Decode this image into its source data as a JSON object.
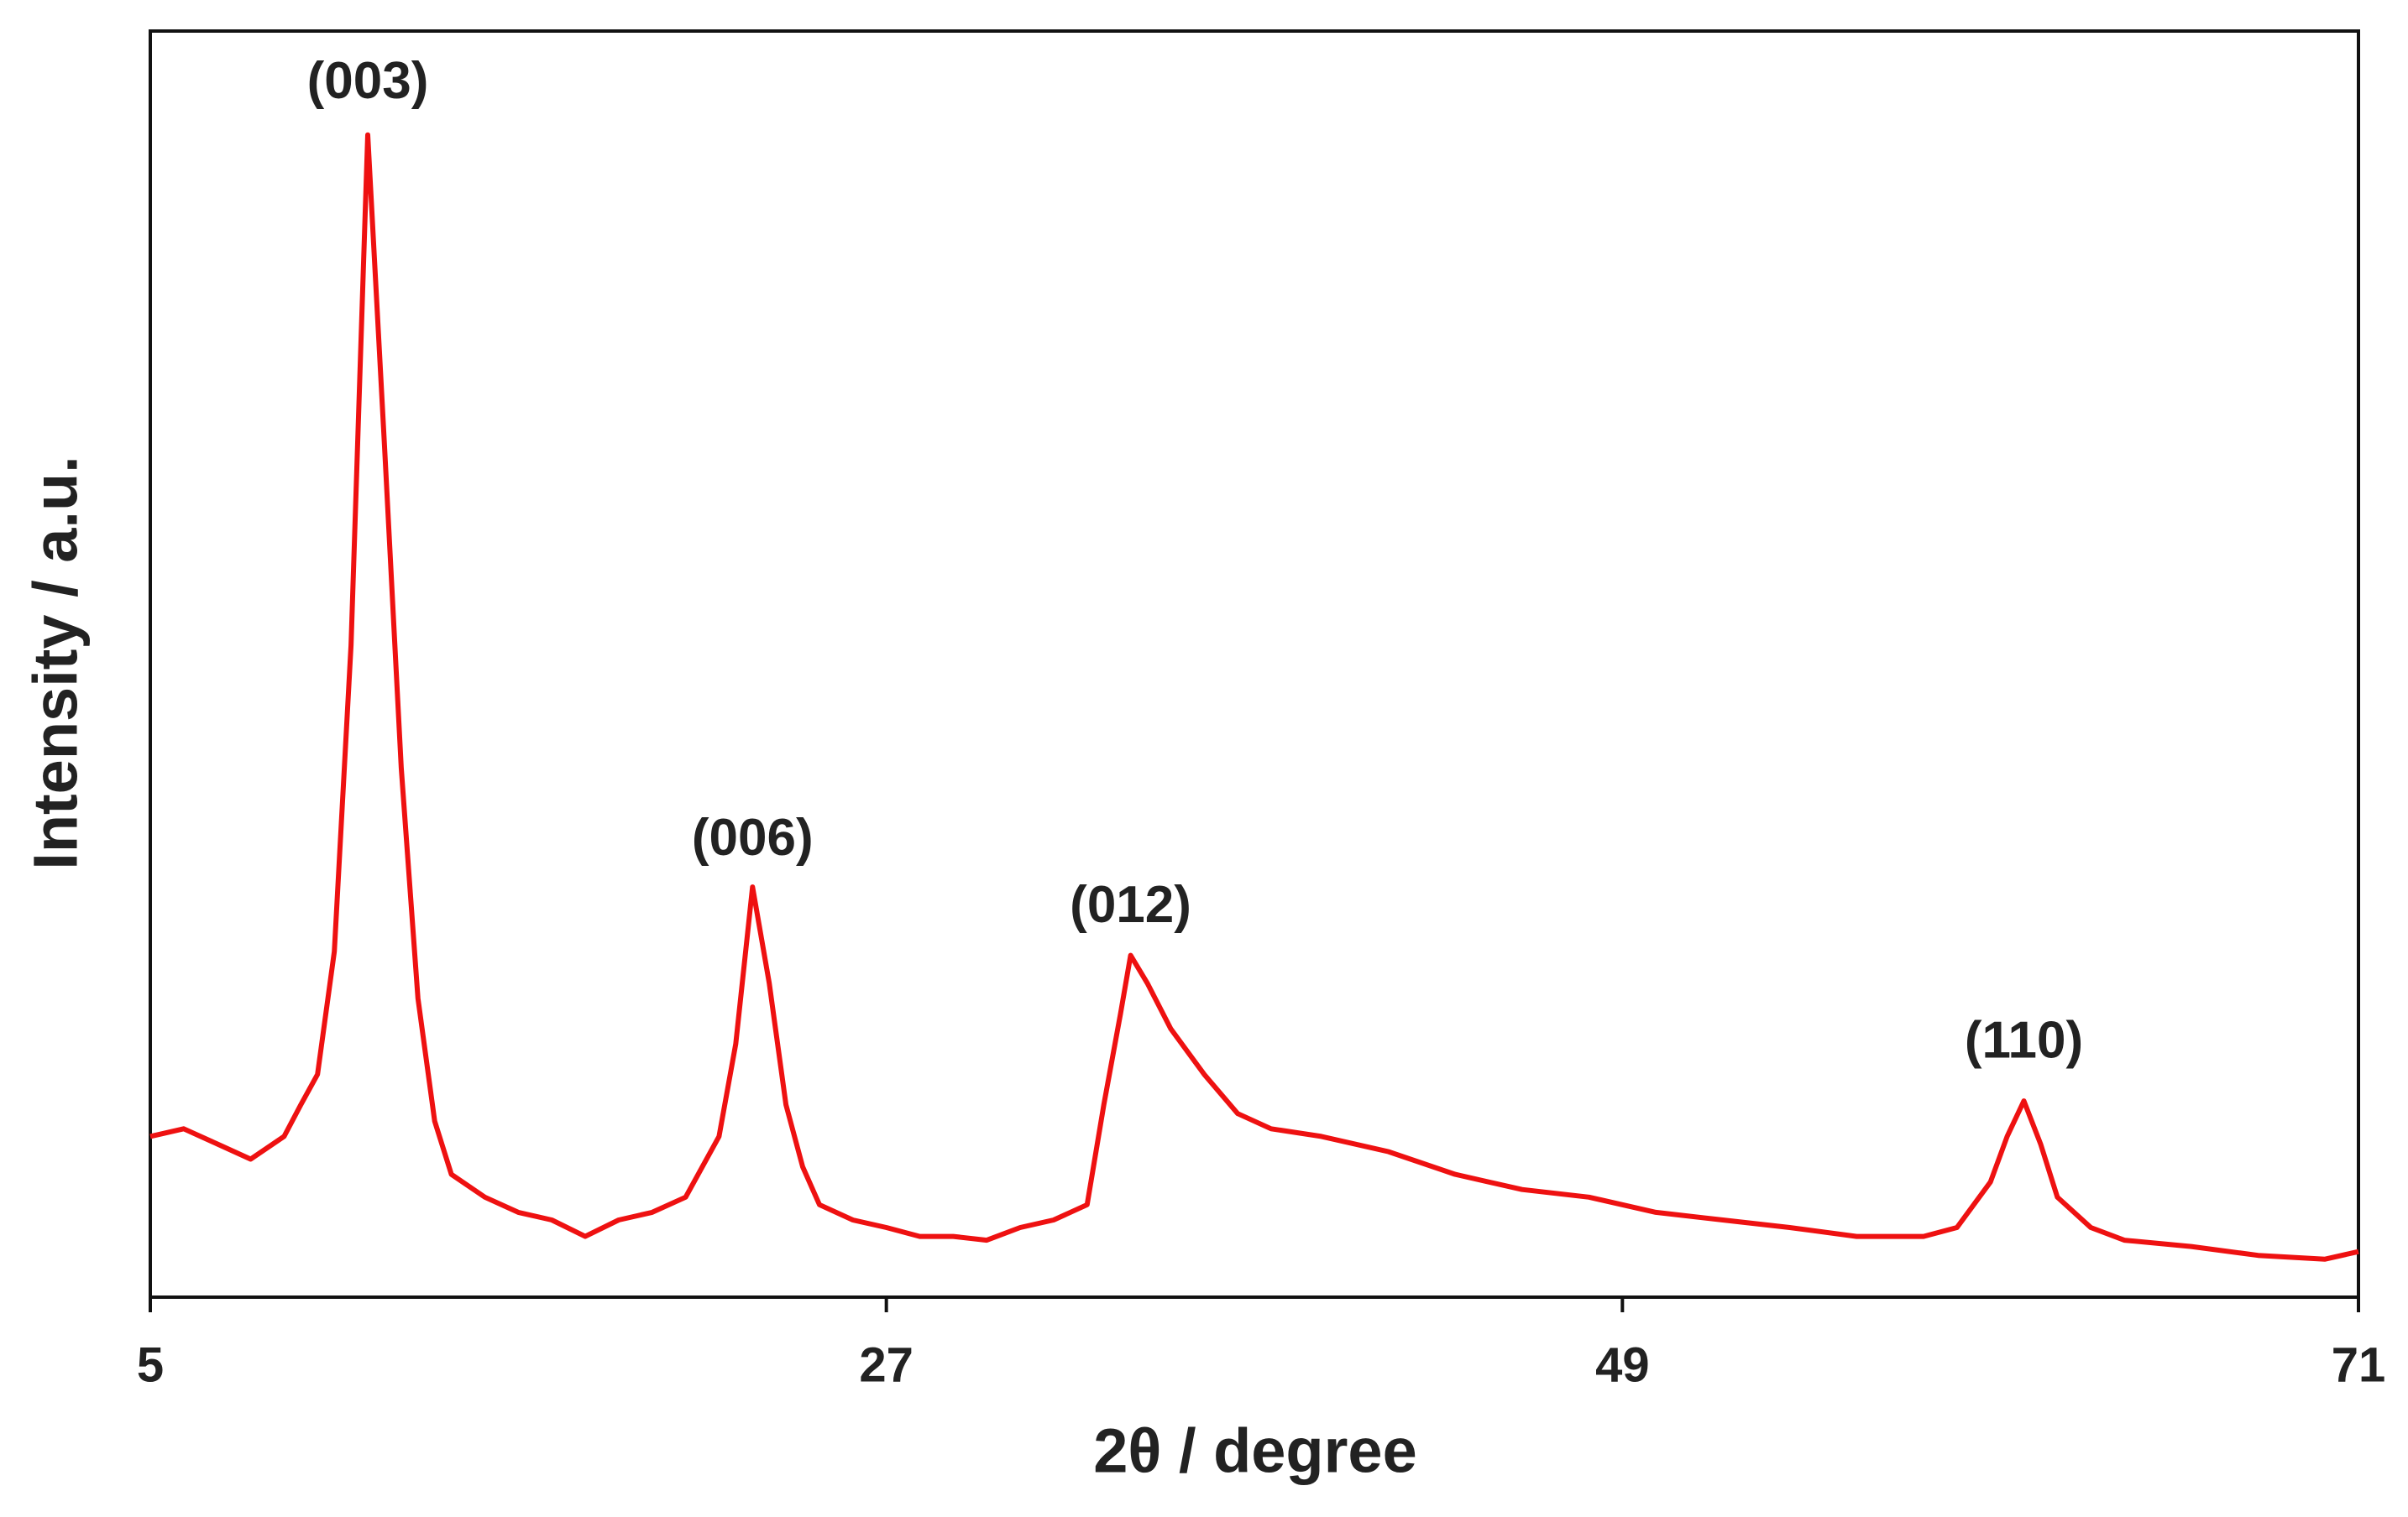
{
  "chart_data": {
    "type": "line",
    "x_label": "2θ / degree",
    "y_label": "Intensity / a.u.",
    "x": [
      5,
      6,
      7,
      8,
      9,
      9.5,
      10,
      10.5,
      11,
      11.5,
      12,
      12.5,
      13,
      13.5,
      14,
      15,
      16,
      17,
      18,
      19,
      20,
      21,
      22,
      22.5,
      23,
      23.5,
      24,
      24.5,
      25,
      26,
      27,
      28,
      29,
      30,
      31,
      32,
      33,
      33.5,
      34,
      34.3,
      34.8,
      35.5,
      36.5,
      37.5,
      38.5,
      40,
      42,
      44,
      46,
      48,
      50,
      52,
      54,
      56,
      58,
      59,
      60,
      60.5,
      61,
      61.5,
      62,
      63,
      64,
      66,
      68,
      70,
      71
    ],
    "values": [
      12.7,
      13.3,
      12.1,
      10.9,
      12.7,
      15.2,
      17.6,
      27.3,
      51.5,
      91.8,
      67.3,
      41.8,
      23.6,
      13.9,
      9.7,
      7.9,
      6.7,
      6.1,
      4.8,
      6.1,
      6.7,
      7.9,
      12.7,
      20.0,
      32.4,
      24.8,
      15.2,
      10.3,
      7.3,
      6.1,
      5.5,
      4.8,
      4.8,
      4.5,
      5.5,
      6.1,
      7.3,
      15.2,
      22.4,
      27.0,
      24.8,
      21.2,
      17.6,
      14.5,
      13.3,
      12.7,
      11.5,
      9.7,
      8.5,
      7.9,
      6.7,
      6.1,
      5.5,
      4.8,
      4.8,
      5.5,
      9.1,
      12.7,
      15.5,
      12.1,
      7.9,
      5.5,
      4.5,
      4.0,
      3.3,
      3.0,
      3.6
    ],
    "color": "#ee1111",
    "xlim": [
      5,
      71
    ],
    "xticks": [
      5,
      27,
      49,
      71
    ],
    "ylim": [
      0,
      100
    ],
    "annotations": [
      {
        "text": "(003)",
        "x": 11.5,
        "y": 95.8
      },
      {
        "text": "(006)",
        "x": 23,
        "y": 36
      },
      {
        "text": "(012)",
        "x": 34.3,
        "y": 30.7
      },
      {
        "text": "(110)",
        "x": 61,
        "y": 20
      }
    ]
  }
}
